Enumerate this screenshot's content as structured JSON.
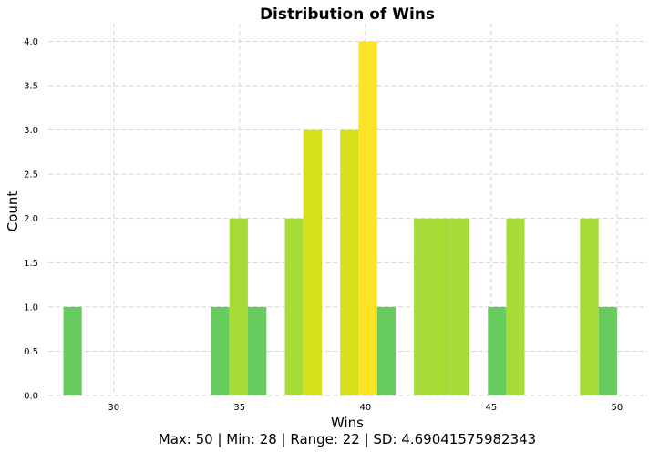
{
  "chart_data": {
    "type": "bar",
    "title": "Distribution of Wins",
    "xlabel": "Wins",
    "ylabel": "Count",
    "footer": "Max: 50 | Min: 28 | Range: 22 | SD: 4.69041575982343",
    "xlim": [
      27.4,
      51.2
    ],
    "ylim": [
      0,
      4.2
    ],
    "x_ticks": [
      30,
      35,
      40,
      45,
      50
    ],
    "y_ticks": [
      0.0,
      0.5,
      1.0,
      1.5,
      2.0,
      2.5,
      3.0,
      3.5,
      4.0
    ],
    "grid": true,
    "bars": [
      {
        "x0": 28.0,
        "x1": 28.73,
        "count": 1,
        "color": "#66cc5e"
      },
      {
        "x0": 33.87,
        "x1": 34.6,
        "count": 1,
        "color": "#66cc5e"
      },
      {
        "x0": 34.6,
        "x1": 35.33,
        "count": 2,
        "color": "#a6dc36"
      },
      {
        "x0": 35.33,
        "x1": 36.07,
        "count": 1,
        "color": "#66cc5e"
      },
      {
        "x0": 36.8,
        "x1": 37.53,
        "count": 2,
        "color": "#a6dc36"
      },
      {
        "x0": 37.53,
        "x1": 38.27,
        "count": 3,
        "color": "#d6df1c"
      },
      {
        "x0": 39.0,
        "x1": 39.73,
        "count": 3,
        "color": "#d6df1c"
      },
      {
        "x0": 39.73,
        "x1": 40.47,
        "count": 4,
        "color": "#fde426"
      },
      {
        "x0": 40.47,
        "x1": 41.2,
        "count": 1,
        "color": "#66cc5e"
      },
      {
        "x0": 41.93,
        "x1": 42.67,
        "count": 2,
        "color": "#a6dc36"
      },
      {
        "x0": 42.67,
        "x1": 43.4,
        "count": 2,
        "color": "#a6dc36"
      },
      {
        "x0": 43.4,
        "x1": 44.13,
        "count": 2,
        "color": "#a6dc36"
      },
      {
        "x0": 44.87,
        "x1": 45.6,
        "count": 1,
        "color": "#66cc5e"
      },
      {
        "x0": 45.6,
        "x1": 46.33,
        "count": 2,
        "color": "#a6dc36"
      },
      {
        "x0": 48.53,
        "x1": 49.27,
        "count": 2,
        "color": "#a6dc36"
      },
      {
        "x0": 49.27,
        "x1": 50.0,
        "count": 1,
        "color": "#66cc5e"
      }
    ]
  }
}
